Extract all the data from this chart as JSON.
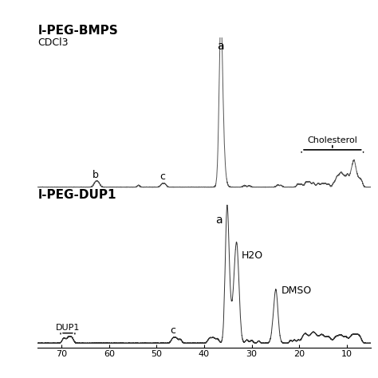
{
  "title_top": "l-PEG-BMPS",
  "label_top_solvent": "CDCl3",
  "title_bottom": "l-PEG-DUP1",
  "xlim_left": 7.5,
  "xlim_right": 0.5,
  "xticks": [
    7.0,
    6.0,
    5.0,
    4.0,
    3.0,
    2.0,
    1.0
  ],
  "xtick_labels": [
    "70",
    "60",
    "50",
    "40",
    "30",
    "20",
    "10"
  ],
  "background_color": "#ffffff",
  "line_color_top": "#555555",
  "line_color_bottom": "#333333"
}
